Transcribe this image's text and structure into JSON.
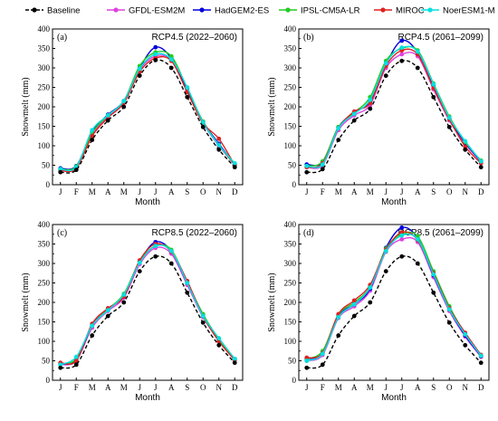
{
  "legend": [
    {
      "name": "Baseline",
      "color": "#000000",
      "dashed": true
    },
    {
      "name": "GFDL-ESM2M",
      "color": "#e040e0",
      "dashed": false
    },
    {
      "name": "HadGEM2-ES",
      "color": "#0000dd",
      "dashed": false
    },
    {
      "name": "IPSL-CM5A-LR",
      "color": "#22cc22",
      "dashed": false
    },
    {
      "name": "MIROC",
      "color": "#e02020",
      "dashed": false
    },
    {
      "name": "NoerESM1-M",
      "color": "#00e0e0",
      "dashed": false
    }
  ],
  "chart_data": [
    {
      "type": "line",
      "tag": "(a)",
      "title": "RCP4.5 (2022–2060)",
      "xlabel": "Month",
      "ylabel": "Snowmelt (mm)",
      "ylim": [
        0,
        400
      ],
      "yticks": [
        0,
        50,
        100,
        150,
        200,
        250,
        300,
        350,
        400
      ],
      "categories": [
        "J",
        "F",
        "M",
        "A",
        "M",
        "J",
        "J",
        "A",
        "S",
        "O",
        "N",
        "D"
      ],
      "series": [
        {
          "name": "Baseline",
          "values": [
            32,
            38,
            115,
            165,
            200,
            280,
            320,
            300,
            225,
            148,
            90,
            45
          ]
        },
        {
          "name": "GFDL-ESM2M",
          "values": [
            38,
            45,
            130,
            175,
            210,
            295,
            330,
            320,
            240,
            158,
            100,
            50
          ]
        },
        {
          "name": "HadGEM2-ES",
          "values": [
            42,
            48,
            135,
            180,
            215,
            300,
            353,
            325,
            245,
            162,
            105,
            52
          ]
        },
        {
          "name": "IPSL-CM5A-LR",
          "values": [
            40,
            47,
            133,
            178,
            215,
            305,
            340,
            330,
            248,
            162,
            102,
            52
          ]
        },
        {
          "name": "MIROC",
          "values": [
            36,
            42,
            125,
            172,
            210,
            290,
            325,
            318,
            238,
            158,
            118,
            50
          ]
        },
        {
          "name": "NoerESM1-M",
          "values": [
            40,
            45,
            140,
            178,
            215,
            298,
            335,
            322,
            250,
            160,
            102,
            55
          ]
        }
      ]
    },
    {
      "type": "line",
      "tag": "(b)",
      "title": "RCP4.5 (2061–2099)",
      "xlabel": "Month",
      "ylabel": "Snowmelt (mm)",
      "ylim": [
        0,
        400
      ],
      "yticks": [
        0,
        50,
        100,
        150,
        200,
        250,
        300,
        350,
        400
      ],
      "categories": [
        "J",
        "F",
        "M",
        "A",
        "M",
        "J",
        "J",
        "A",
        "S",
        "O",
        "N",
        "D"
      ],
      "series": [
        {
          "name": "Baseline",
          "values": [
            32,
            40,
            115,
            165,
            195,
            280,
            318,
            300,
            225,
            148,
            90,
            45
          ]
        },
        {
          "name": "GFDL-ESM2M",
          "values": [
            45,
            50,
            140,
            178,
            205,
            300,
            335,
            330,
            245,
            165,
            105,
            58
          ]
        },
        {
          "name": "HadGEM2-ES",
          "values": [
            52,
            58,
            148,
            185,
            215,
            310,
            370,
            340,
            255,
            170,
            108,
            60
          ]
        },
        {
          "name": "IPSL-CM5A-LR",
          "values": [
            48,
            60,
            148,
            185,
            225,
            318,
            350,
            345,
            260,
            175,
            110,
            62
          ]
        },
        {
          "name": "MIROC",
          "values": [
            45,
            55,
            145,
            188,
            210,
            305,
            345,
            335,
            248,
            168,
            98,
            55
          ]
        },
        {
          "name": "NoerESM1-M",
          "values": [
            48,
            52,
            145,
            182,
            218,
            312,
            352,
            342,
            258,
            172,
            112,
            60
          ]
        }
      ]
    },
    {
      "type": "line",
      "tag": "(c)",
      "title": "RCP8.5 (2022–2060)",
      "xlabel": "Month",
      "ylabel": "Snowmelt (mm)",
      "ylim": [
        0,
        400
      ],
      "yticks": [
        0,
        50,
        100,
        150,
        200,
        250,
        300,
        350,
        400
      ],
      "categories": [
        "J",
        "F",
        "M",
        "A",
        "M",
        "J",
        "J",
        "A",
        "S",
        "O",
        "N",
        "D"
      ],
      "series": [
        {
          "name": "Baseline",
          "values": [
            32,
            40,
            115,
            165,
            200,
            280,
            318,
            300,
            225,
            148,
            90,
            45
          ]
        },
        {
          "name": "GFDL-ESM2M",
          "values": [
            40,
            50,
            135,
            178,
            212,
            298,
            340,
            325,
            245,
            162,
            102,
            52
          ]
        },
        {
          "name": "HadGEM2-ES",
          "values": [
            42,
            52,
            140,
            182,
            218,
            305,
            355,
            332,
            250,
            168,
            105,
            55
          ]
        },
        {
          "name": "IPSL-CM5A-LR",
          "values": [
            42,
            55,
            140,
            182,
            222,
            305,
            345,
            335,
            252,
            170,
            105,
            55
          ]
        },
        {
          "name": "MIROC",
          "values": [
            45,
            50,
            145,
            185,
            215,
            308,
            350,
            330,
            255,
            165,
            100,
            52
          ]
        },
        {
          "name": "NoerESM1-M",
          "values": [
            40,
            60,
            140,
            180,
            220,
            302,
            345,
            332,
            250,
            165,
            108,
            55
          ]
        }
      ]
    },
    {
      "type": "line",
      "tag": "(d)",
      "title": "RCP8.5 (2061–2099)",
      "xlabel": "Month",
      "ylabel": "Snowmelt (mm)",
      "ylim": [
        0,
        400
      ],
      "yticks": [
        0,
        50,
        100,
        150,
        200,
        250,
        300,
        350,
        400
      ],
      "categories": [
        "J",
        "F",
        "M",
        "A",
        "M",
        "J",
        "J",
        "A",
        "S",
        "O",
        "N",
        "D"
      ],
      "series": [
        {
          "name": "Baseline",
          "values": [
            32,
            40,
            115,
            165,
            200,
            280,
            318,
            300,
            225,
            148,
            90,
            45
          ]
        },
        {
          "name": "GFDL-ESM2M",
          "values": [
            50,
            65,
            160,
            190,
            230,
            330,
            362,
            355,
            265,
            178,
            112,
            60
          ]
        },
        {
          "name": "HadGEM2-ES",
          "values": [
            55,
            70,
            165,
            195,
            235,
            340,
            392,
            365,
            270,
            182,
            115,
            62
          ]
        },
        {
          "name": "IPSL-CM5A-LR",
          "values": [
            55,
            75,
            168,
            200,
            240,
            338,
            375,
            370,
            280,
            190,
            120,
            65
          ]
        },
        {
          "name": "MIROC",
          "values": [
            58,
            70,
            170,
            205,
            245,
            335,
            380,
            360,
            275,
            185,
            122,
            65
          ]
        },
        {
          "name": "NoerESM1-M",
          "values": [
            50,
            68,
            162,
            195,
            238,
            332,
            372,
            362,
            272,
            182,
            118,
            63
          ]
        }
      ]
    }
  ]
}
